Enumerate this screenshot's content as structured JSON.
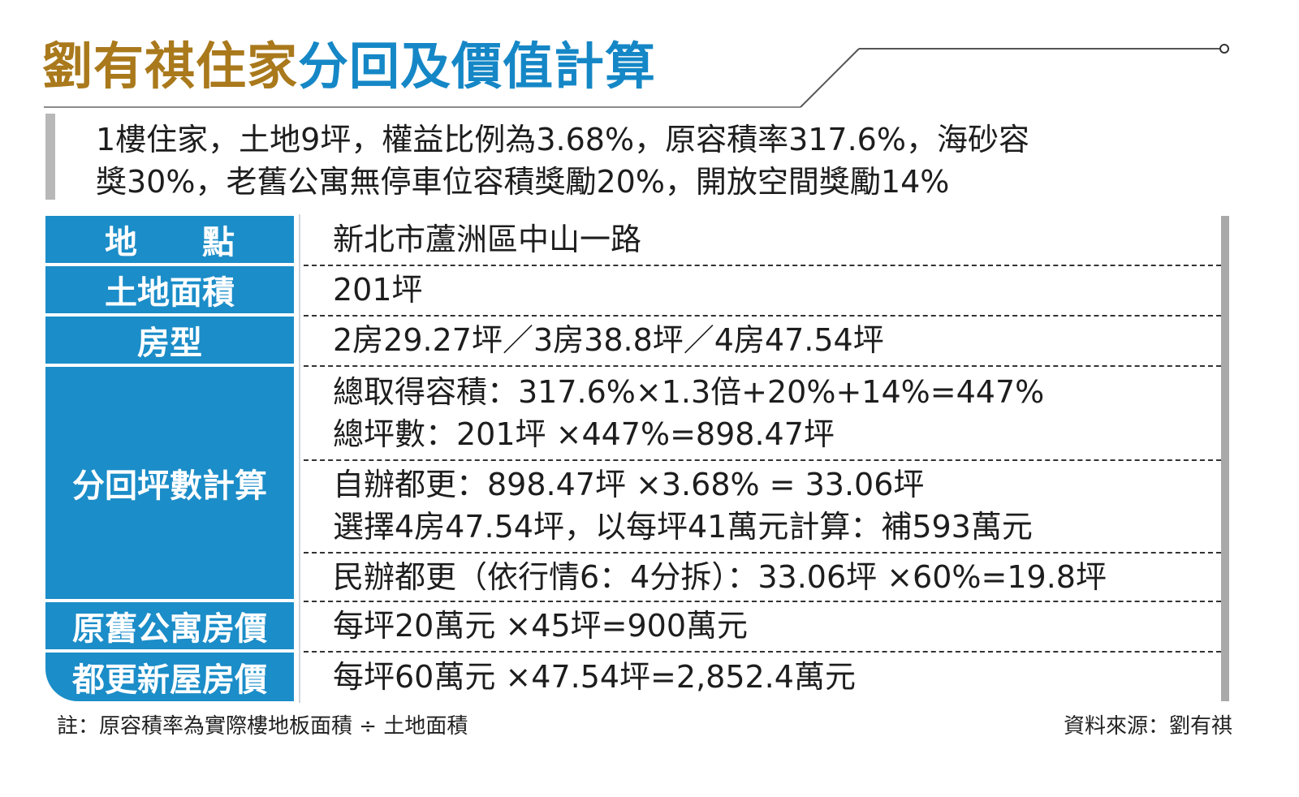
{
  "title": {
    "part1": "劉有祺住家",
    "part2": "分回及價值計算"
  },
  "intro": {
    "line1": "1樓住家，土地9坪，權益比例為3.68%，原容積率317.6%，海砂容",
    "line2": "獎30%，老舊公寓無停車位容積獎勵20%，開放空間獎勵14%"
  },
  "rows": [
    {
      "label": "地　　點",
      "lines": [
        "新北市蘆洲區中山一路"
      ]
    },
    {
      "label": "土地面積",
      "lines": [
        "201坪"
      ]
    },
    {
      "label": "房型",
      "lines": [
        "2房29.27坪／3房38.8坪／4房47.54坪"
      ]
    },
    {
      "label": "分回坪數計算",
      "groups": [
        [
          "總取得容積：317.6%×1.3倍+20%+14%=447%",
          "總坪數：201坪 ×447%=898.47坪"
        ],
        [
          "自辦都更：898.47坪 ×3.68% = 33.06坪",
          "選擇4房47.54坪，以每坪41萬元計算：補593萬元"
        ],
        [
          "民辦都更（依行情6：4分拆）：33.06坪 ×60%=19.8坪"
        ]
      ]
    },
    {
      "label": "原舊公寓房價",
      "lines": [
        "每坪20萬元 ×45坪=900萬元"
      ]
    },
    {
      "label": "都更新屋房價",
      "lines": [
        "每坪60萬元 ×47.54坪=2,852.4萬元"
      ]
    }
  ],
  "footnote": "註：原容積率為實際樓地板面積 ÷ 土地面積",
  "source": "資料來源：劉有祺",
  "colors": {
    "label_bg": "#1b8dc8",
    "title_gold": "#a9791c",
    "title_blue": "#1587c6"
  }
}
